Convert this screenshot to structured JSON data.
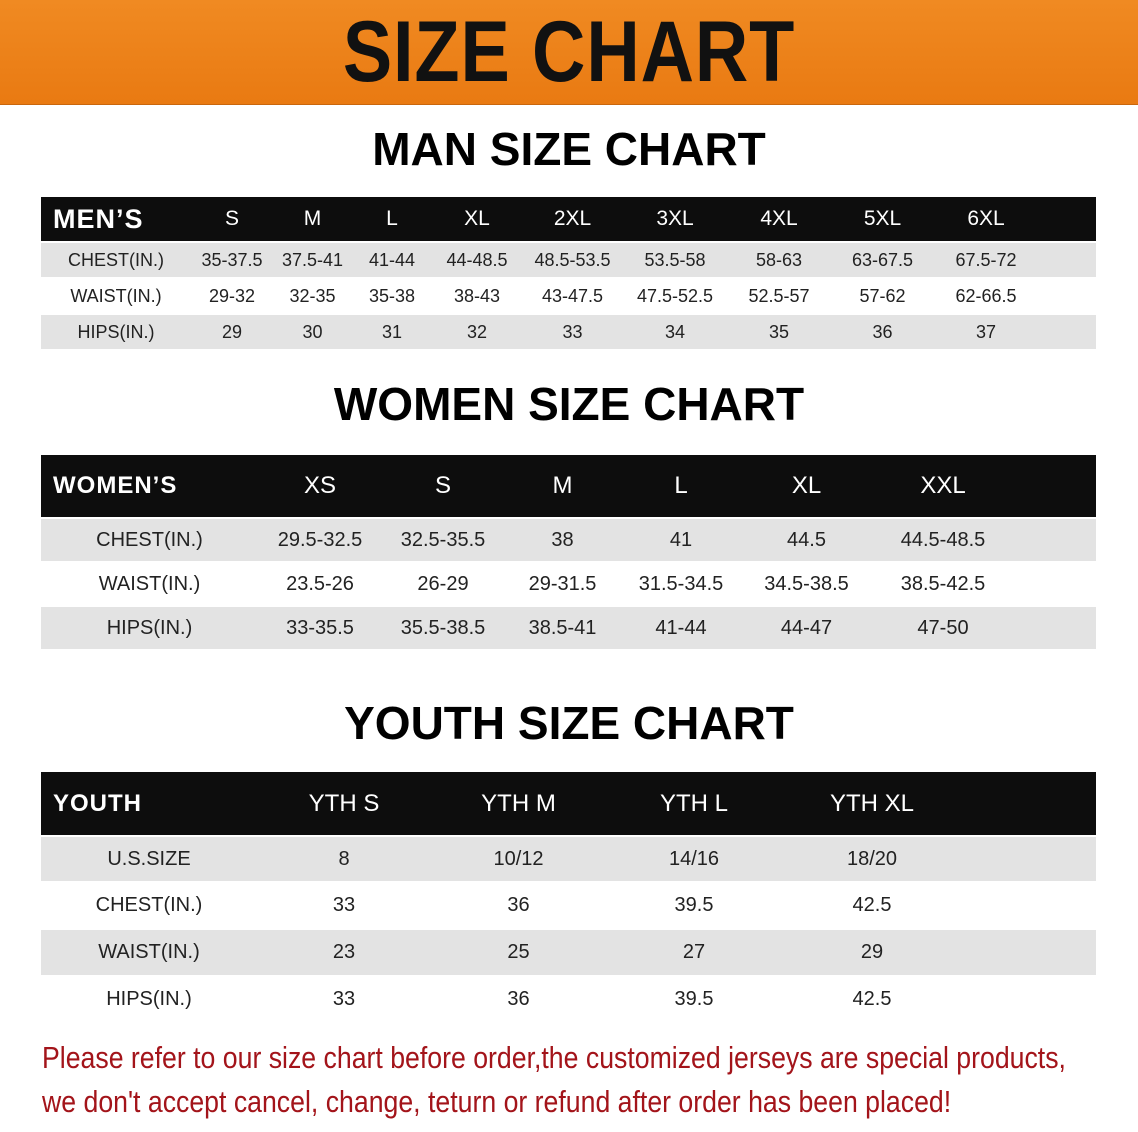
{
  "banner": {
    "title": "SIZE CHART",
    "color": "#ee8219"
  },
  "men": {
    "title": "MAN SIZE CHART",
    "header": [
      "MEN’S",
      "S",
      "M",
      "L",
      "XL",
      "2XL",
      "3XL",
      "4XL",
      "5XL",
      "6XL"
    ],
    "rows": [
      [
        "CHEST(IN.)",
        "35-37.5",
        "37.5-41",
        "41-44",
        "44-48.5",
        "48.5-53.5",
        "53.5-58",
        "58-63",
        "63-67.5",
        "67.5-72"
      ],
      [
        "WAIST(IN.)",
        "29-32",
        "32-35",
        "35-38",
        "38-43",
        "43-47.5",
        "47.5-52.5",
        "52.5-57",
        "57-62",
        "62-66.5"
      ],
      [
        "HIPS(IN.)",
        "29",
        "30",
        "31",
        "32",
        "33",
        "34",
        "35",
        "36",
        "37"
      ]
    ]
  },
  "women": {
    "title": "WOMEN SIZE CHART",
    "header": [
      "WOMEN’S",
      "XS",
      "S",
      "M",
      "L",
      "XL",
      "XXL"
    ],
    "rows": [
      [
        "CHEST(IN.)",
        "29.5-32.5",
        "32.5-35.5",
        "38",
        "41",
        "44.5",
        "44.5-48.5"
      ],
      [
        "WAIST(IN.)",
        "23.5-26",
        "26-29",
        "29-31.5",
        "31.5-34.5",
        "34.5-38.5",
        "38.5-42.5"
      ],
      [
        "HIPS(IN.)",
        "33-35.5",
        "35.5-38.5",
        "38.5-41",
        "41-44",
        "44-47",
        "47-50"
      ]
    ]
  },
  "youth": {
    "title": "YOUTH SIZE CHART",
    "header": [
      "YOUTH",
      "YTH S",
      "YTH M",
      "YTH L",
      "YTH XL"
    ],
    "rows": [
      [
        "U.S.SIZE",
        "8",
        "10/12",
        "14/16",
        "18/20"
      ],
      [
        "CHEST(IN.)",
        "33",
        "36",
        "39.5",
        "42.5"
      ],
      [
        "WAIST(IN.)",
        "23",
        "25",
        "27",
        "29"
      ],
      [
        "HIPS(IN.)",
        "33",
        "36",
        "39.5",
        "42.5"
      ]
    ]
  },
  "note": {
    "line1": "Please refer to our size chart before order,the customized jerseys are special products,",
    "line2": "we don't accept cancel, change, teturn or refund after order has been placed!",
    "color": "#a3141a"
  }
}
